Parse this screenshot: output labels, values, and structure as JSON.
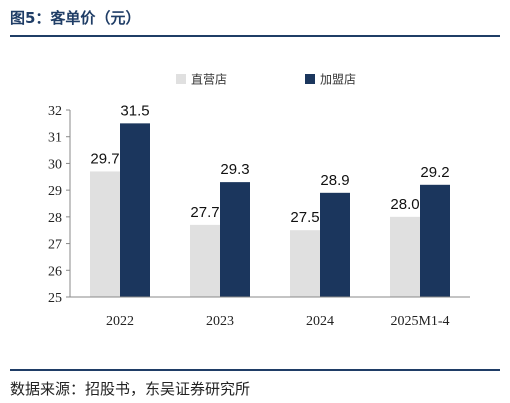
{
  "figure_title": "图5：客单价（元）",
  "source_text": "数据来源：招股书，东吴证券研究所",
  "chart_data": {
    "type": "bar",
    "title": "",
    "xlabel": "",
    "ylabel": "",
    "categories": [
      "2022",
      "2023",
      "2024",
      "2025M1-4"
    ],
    "series": [
      {
        "name": "直营店",
        "color": "#e0e0e0",
        "values": [
          29.7,
          27.7,
          27.5,
          28.0
        ]
      },
      {
        "name": "加盟店",
        "color": "#1b365d",
        "values": [
          31.5,
          29.3,
          28.9,
          29.2
        ]
      }
    ],
    "ylim": [
      25,
      32
    ],
    "yticks": [
      25,
      26,
      27,
      28,
      29,
      30,
      31,
      32
    ],
    "legend_position": "top",
    "grid": false,
    "data_labels": true
  }
}
